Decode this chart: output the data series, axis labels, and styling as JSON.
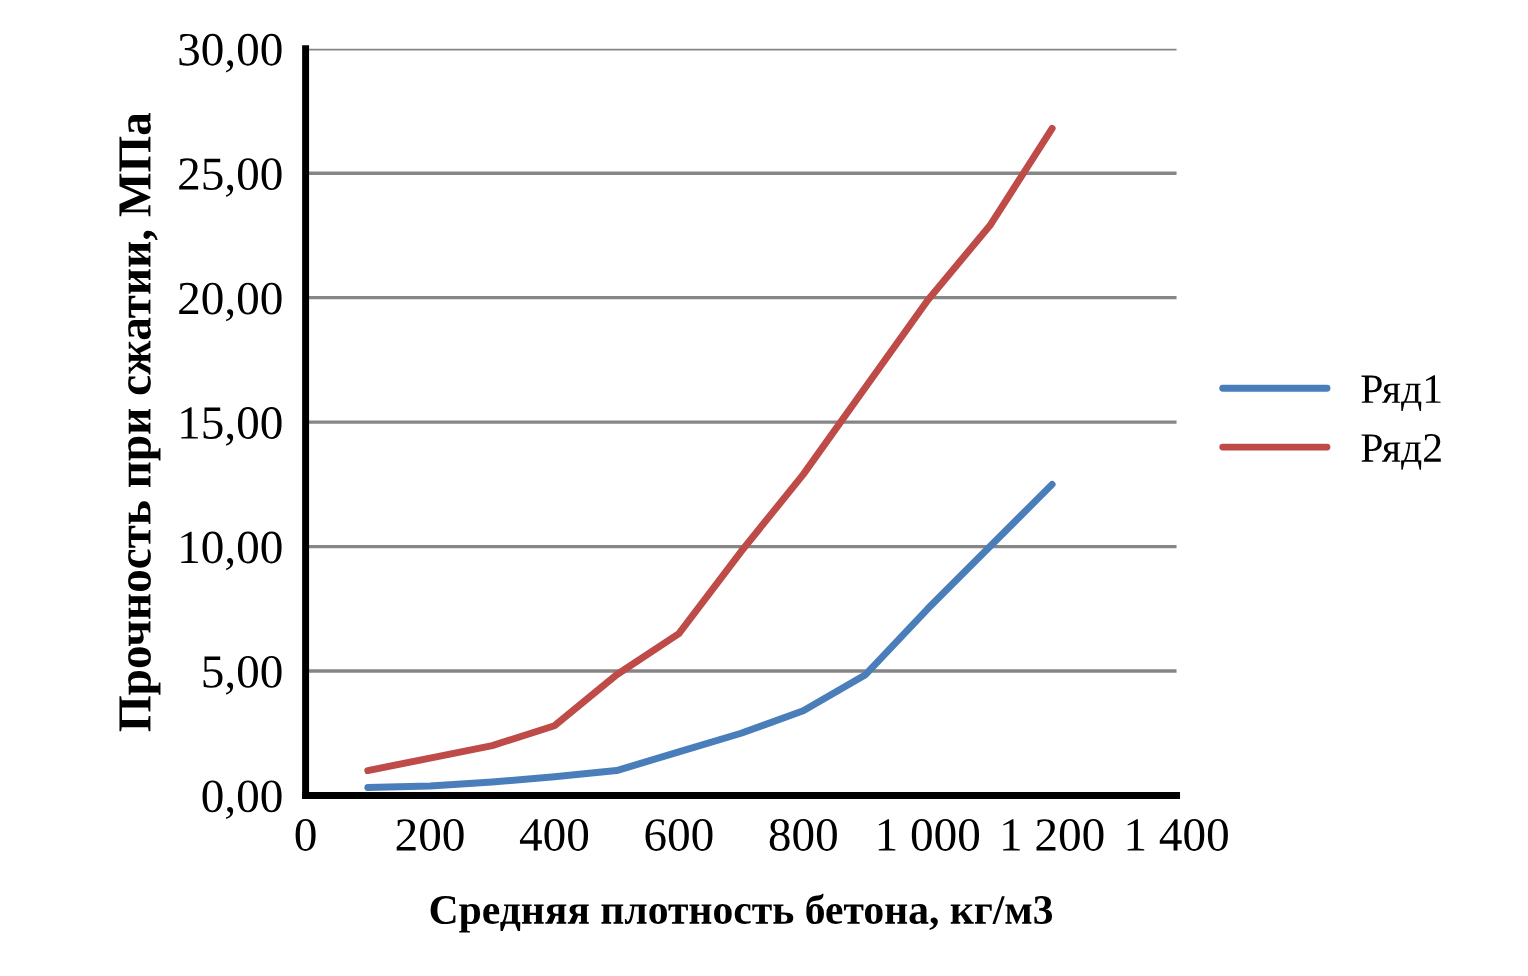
{
  "chart_data": {
    "type": "line",
    "xlabel": "Средняя плотность бетона, кг/м3",
    "ylabel": "Прочность при сжатии, МПа",
    "x": [
      100,
      200,
      300,
      400,
      500,
      600,
      700,
      800,
      900,
      1000,
      1100,
      1200
    ],
    "series": [
      {
        "name": "Ряд1",
        "color": "#4a7ebb",
        "values": [
          0.32,
          0.38,
          0.54,
          0.75,
          1.0,
          1.75,
          2.5,
          3.4,
          4.85,
          7.5,
          10.0,
          12.5
        ]
      },
      {
        "name": "Ряд2",
        "color": "#be4b48",
        "values": [
          1.0,
          1.5,
          2.0,
          2.8,
          4.85,
          6.5,
          9.8,
          12.9,
          16.4,
          19.9,
          22.9,
          26.8
        ]
      }
    ],
    "xlim": [
      0,
      1400
    ],
    "xticks": [
      0,
      200,
      400,
      600,
      800,
      {
        "value": 1000,
        "label": "1 000"
      },
      {
        "value": 1200,
        "label": "1 200"
      },
      {
        "value": 1400,
        "label": "1 400"
      }
    ],
    "ylim": [
      0,
      30
    ],
    "yticks": [
      {
        "value": 0,
        "label": "0,00"
      },
      {
        "value": 5,
        "label": "5,00"
      },
      {
        "value": 10,
        "label": "10,00"
      },
      {
        "value": 15,
        "label": "15,00"
      },
      {
        "value": 20,
        "label": "20,00"
      },
      {
        "value": 25,
        "label": "25,00"
      },
      {
        "value": 30,
        "label": "30,00"
      }
    ],
    "grid": "y",
    "legend": "right",
    "marker": "none",
    "line_style": "solid"
  }
}
